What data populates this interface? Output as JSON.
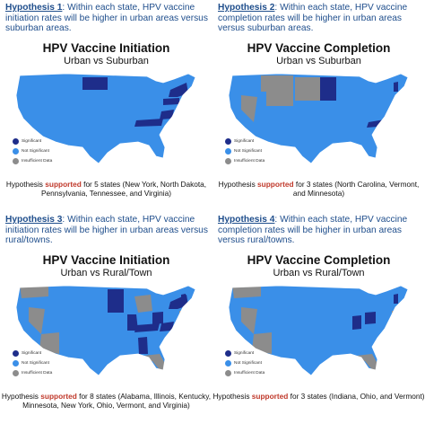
{
  "colors": {
    "significant": "#1e2d8a",
    "not_significant": "#3a8fe8",
    "insufficient": "#8c8c8c",
    "header": "#1f4e8c",
    "supported": "#c0392b"
  },
  "legend": {
    "significant": "Significant",
    "not_significant": "Not Significant",
    "insufficient": "Insufficient Data"
  },
  "panels": [
    {
      "hyp_label": "Hypothesis 1",
      "hyp_text": ": Within each state, HPV vaccine initiation rates will be higher in urban areas versus suburban areas.",
      "title": "HPV Vaccine Initiation",
      "subtitle": "Urban vs Suburban",
      "note_pre": "Hypothesis ",
      "note_sup": "supported",
      "note_post": " for 5 states (New York, North Dakota, Pennsylvania, Tennessee, and Virginia)",
      "map": {
        "significant": [
          "North Dakota",
          "New York",
          "Pennsylvania",
          "Tennessee",
          "Virginia"
        ],
        "insufficient": []
      }
    },
    {
      "hyp_label": "Hypothesis 2",
      "hyp_text": ": Within each state, HPV vaccine completion rates will be higher in urban areas versus suburban areas.",
      "title": "HPV Vaccine Completion",
      "subtitle": "Urban vs Suburban",
      "note_pre": "Hypothesis ",
      "note_sup": "supported",
      "note_post": " for 3 states (North Carolina, Vermont, and Minnesota)",
      "map": {
        "significant": [
          "Minnesota",
          "North Carolina",
          "Vermont"
        ],
        "insufficient": [
          "Montana",
          "Wyoming",
          "North Dakota",
          "South Dakota",
          "Nevada"
        ]
      }
    },
    {
      "hyp_label": "Hypothesis 3",
      "hyp_text": ": Within each state, HPV vaccine initiation rates will be higher in urban areas versus rural/towns.",
      "title": "HPV Vaccine Initiation",
      "subtitle": "Urban vs Rural/Town",
      "note_pre": "Hypothesis ",
      "note_sup": "supported",
      "note_post": " for 8 states (Alabama, Illinois, Kentucky, Minnesota, New York, Ohio, Vermont, and Virginia)",
      "map": {
        "significant": [
          "Minnesota",
          "Illinois",
          "Ohio",
          "Kentucky",
          "Alabama",
          "New York",
          "Vermont",
          "Virginia"
        ],
        "insufficient": [
          "Washington",
          "Nevada",
          "Arizona",
          "Michigan",
          "Florida",
          "New Jersey",
          "Massachusetts"
        ]
      }
    },
    {
      "hyp_label": "Hypothesis 4",
      "hyp_text": ": Within each state, HPV vaccine completion rates will be higher in urban areas versus rural/towns.",
      "title": "HPV Vaccine Completion",
      "subtitle": "Urban vs Rural/Town",
      "note_pre": "Hypothesis ",
      "note_sup": "supported",
      "note_post": " for 3 states (Indiana, Ohio, and Vermont)",
      "map": {
        "significant": [
          "Indiana",
          "Ohio",
          "Vermont"
        ],
        "insufficient": [
          "Washington",
          "Nevada",
          "Arizona",
          "Florida",
          "New Jersey",
          "Massachusetts"
        ]
      }
    }
  ]
}
